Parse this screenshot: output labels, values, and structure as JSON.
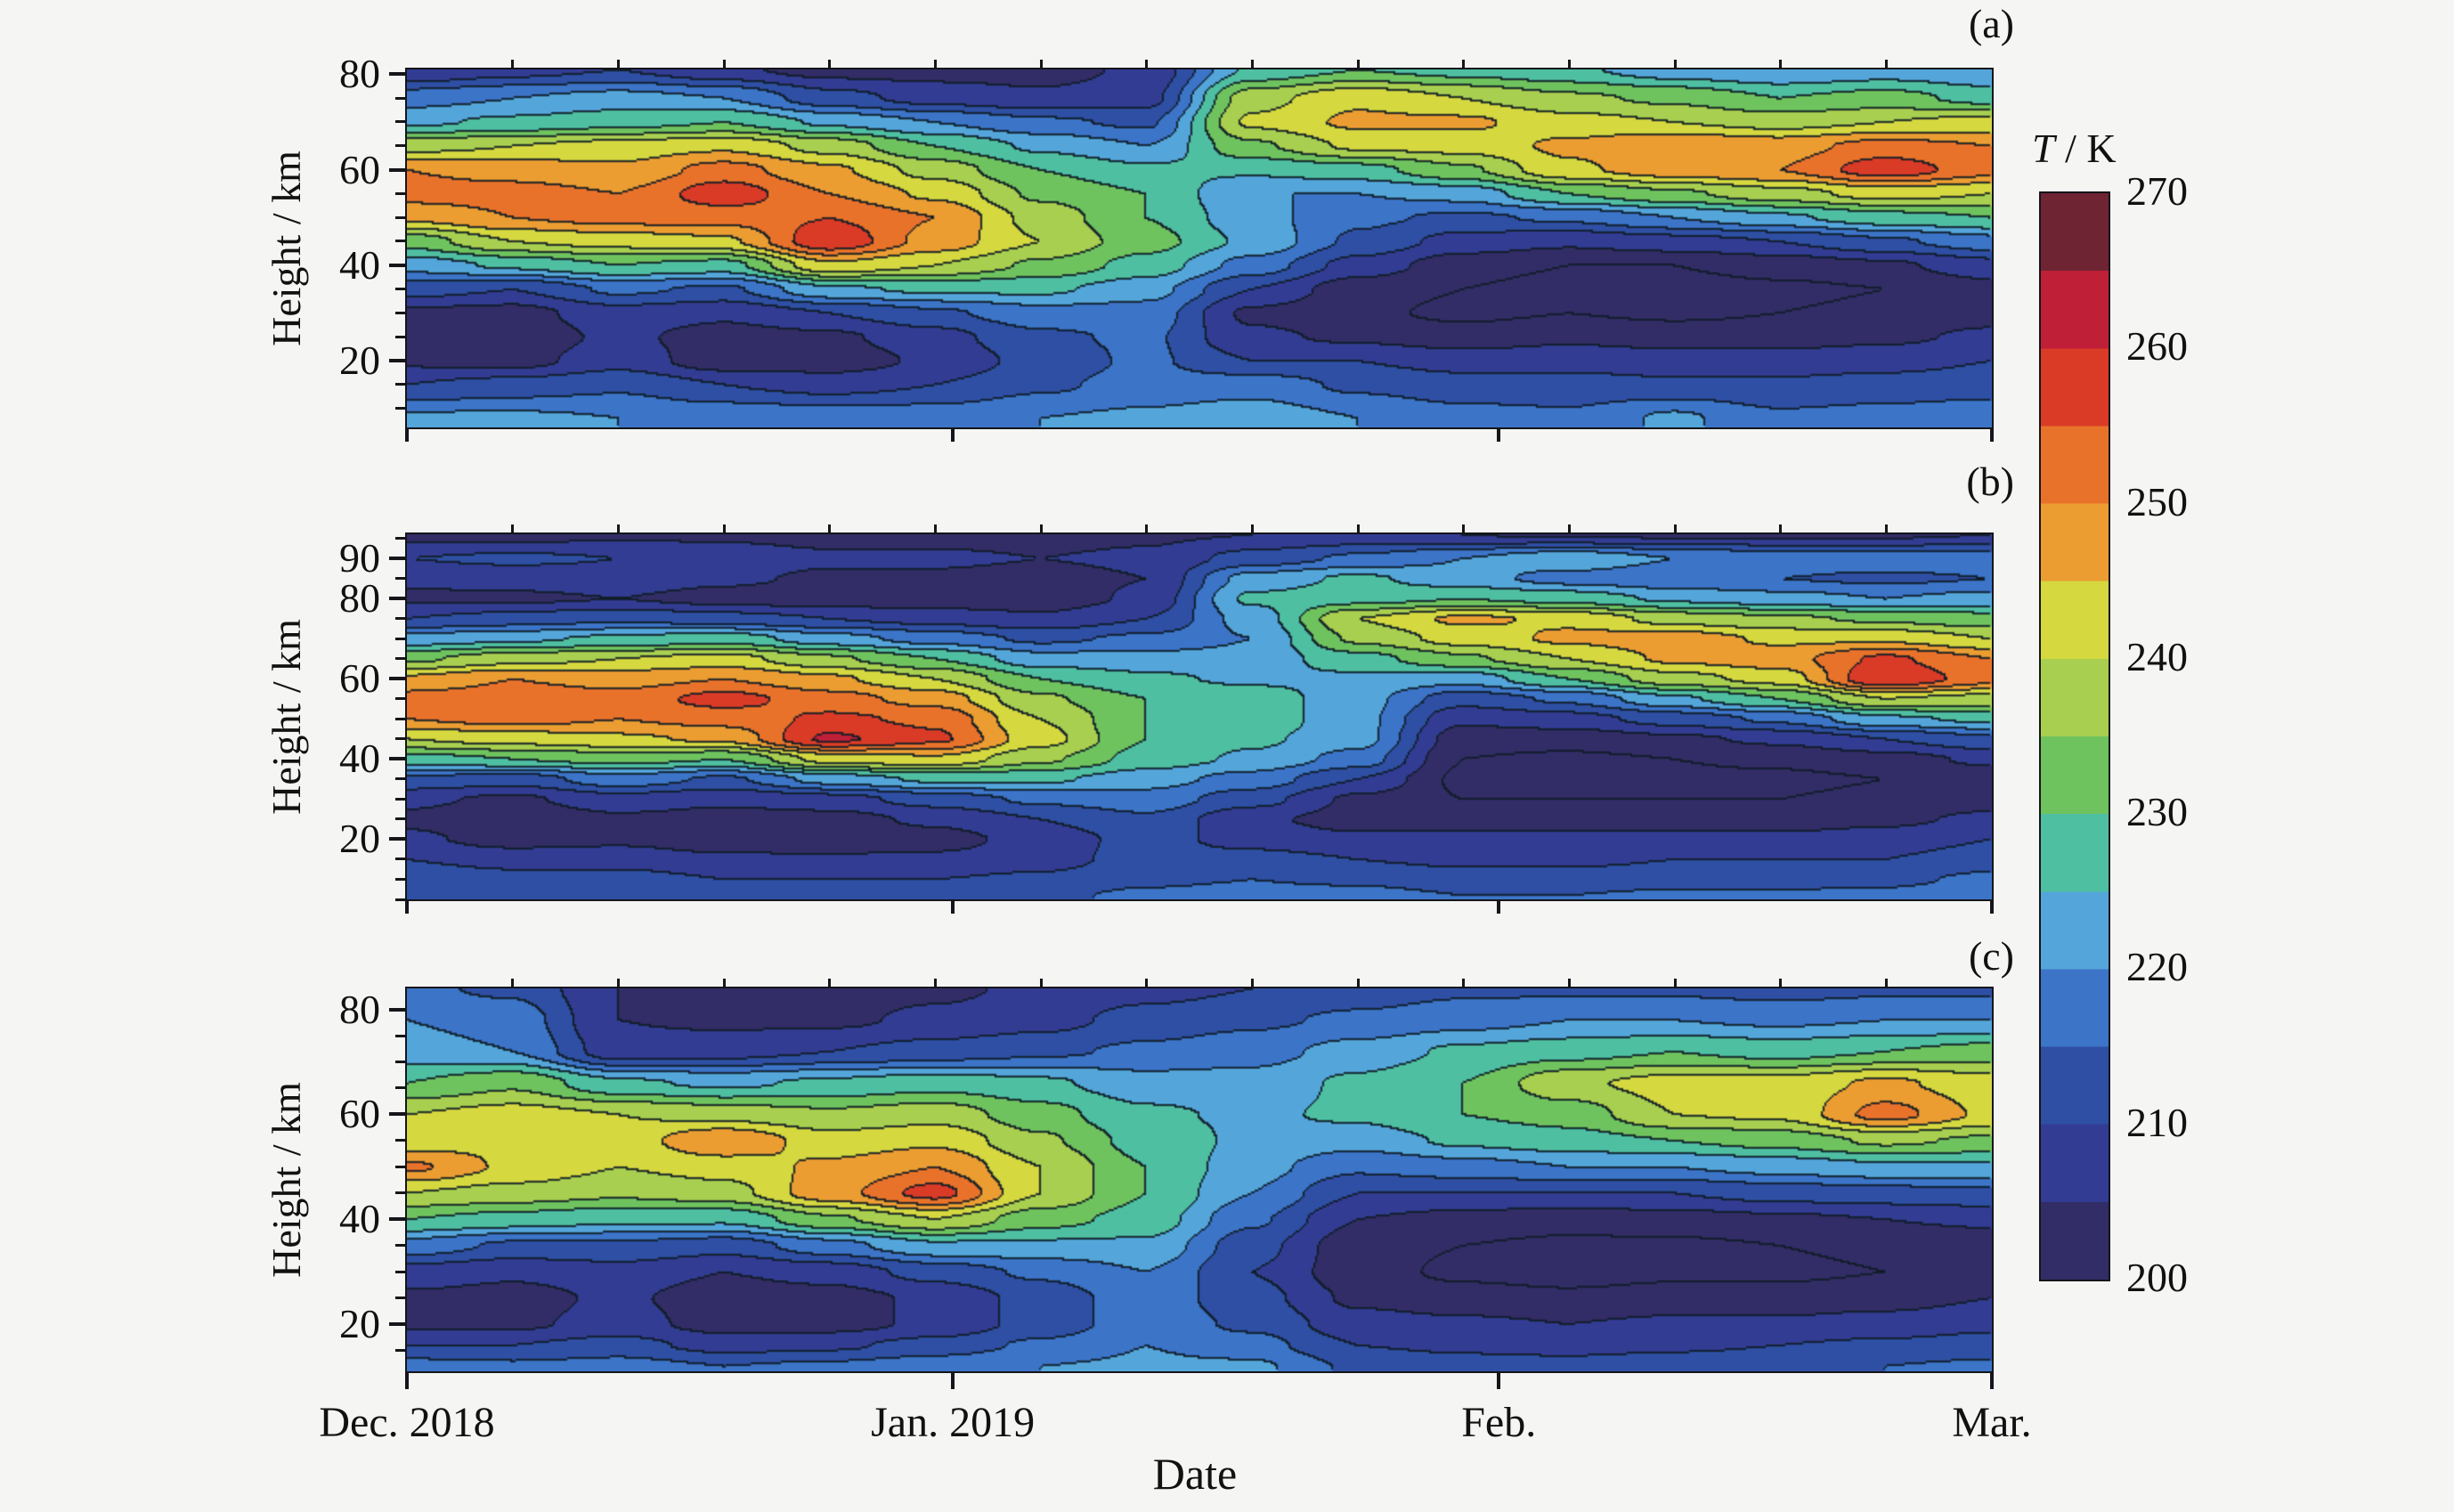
{
  "chart_data": {
    "type": "heatmap",
    "title": "",
    "xlabel": "Date",
    "x_unit_days_range": [
      0,
      90
    ],
    "x_ticks": [
      {
        "label": "Dec. 2018",
        "day": 0
      },
      {
        "label": "Jan. 2019",
        "day": 31
      },
      {
        "label": "Feb.",
        "day": 62
      },
      {
        "label": "Mar.",
        "day": 90
      }
    ],
    "x_minor_tick_step_days": 6,
    "colorbar": {
      "title": "T / K",
      "title_variable": "T",
      "title_suffix": " / K",
      "min": 200,
      "max": 270,
      "step_K": 5,
      "tick_labels": [
        "270",
        "260",
        "250",
        "240",
        "230",
        "220",
        "210",
        "200"
      ],
      "palette_low_to_high": [
        "#322d66",
        "#333c93",
        "#2e4fa3",
        "#3c74c8",
        "#54a6da",
        "#4fbfa2",
        "#6fc35e",
        "#a8cf4f",
        "#d5d83f",
        "#eb9d32",
        "#e9722a",
        "#da3b26",
        "#c01f38",
        "#6f2433"
      ],
      "contour_line_color": "#101c26"
    },
    "panels": [
      {
        "label": "(a)",
        "ylabel": "Height / km",
        "y_ticks_km": [
          20,
          40,
          60,
          80
        ],
        "y_minor_step_km": 5,
        "y_range_km": [
          6,
          81
        ],
        "days": [
          0,
          6,
          12,
          18,
          24,
          30,
          36,
          42,
          48,
          54,
          60,
          66,
          72,
          78,
          84,
          90
        ],
        "heights_km": [
          81,
          75,
          70,
          65,
          60,
          55,
          50,
          45,
          40,
          35,
          30,
          25,
          20,
          15,
          8
        ],
        "temperature_grid_K": [
          [
            205,
            208,
            210,
            206,
            203,
            203,
            203,
            206,
            226,
            230,
            228,
            226,
            222,
            220,
            222,
            220
          ],
          [
            218,
            220,
            222,
            220,
            212,
            208,
            206,
            208,
            238,
            244,
            240,
            236,
            234,
            230,
            232,
            228
          ],
          [
            224,
            226,
            228,
            230,
            224,
            220,
            216,
            214,
            241,
            246,
            246,
            242,
            240,
            238,
            240,
            242
          ],
          [
            238,
            240,
            242,
            244,
            238,
            230,
            224,
            220,
            234,
            241,
            242,
            246,
            250,
            248,
            252,
            250
          ],
          [
            250,
            248,
            246,
            252,
            246,
            238,
            230,
            226,
            226,
            228,
            234,
            244,
            248,
            250,
            258,
            252
          ],
          [
            252,
            252,
            250,
            258,
            250,
            244,
            234,
            230,
            220,
            220,
            222,
            230,
            234,
            238,
            242,
            240
          ],
          [
            246,
            250,
            252,
            252,
            255,
            250,
            238,
            230,
            222,
            216,
            214,
            216,
            220,
            224,
            228,
            230
          ],
          [
            232,
            240,
            242,
            244,
            259,
            248,
            240,
            232,
            224,
            214,
            208,
            206,
            208,
            210,
            214,
            218
          ],
          [
            222,
            226,
            230,
            228,
            244,
            240,
            234,
            228,
            218,
            208,
            202,
            200,
            200,
            202,
            204,
            208
          ],
          [
            212,
            210,
            216,
            214,
            224,
            226,
            226,
            222,
            210,
            202,
            200,
            198,
            198,
            199,
            200,
            203
          ],
          [
            204,
            203,
            208,
            206,
            210,
            214,
            218,
            218,
            204,
            201,
            199,
            200,
            199,
            200,
            201,
            203
          ],
          [
            203,
            202,
            206,
            203,
            204,
            208,
            214,
            216,
            206,
            204,
            202,
            204,
            203,
            203,
            204,
            206
          ],
          [
            204,
            203,
            208,
            202,
            202,
            206,
            212,
            216,
            210,
            210,
            208,
            208,
            207,
            207,
            208,
            210
          ],
          [
            210,
            212,
            214,
            210,
            208,
            210,
            214,
            217,
            218,
            214,
            212,
            212,
            211,
            211,
            212,
            213
          ],
          [
            221,
            221,
            220,
            219,
            218,
            218,
            220,
            221,
            223,
            220,
            217,
            216,
            221,
            216,
            217,
            218
          ]
        ]
      },
      {
        "label": "(b)",
        "ylabel": "Height / km",
        "y_ticks_km": [
          20,
          40,
          60,
          80,
          90
        ],
        "y_minor_step_km": 5,
        "y_range_km": [
          5,
          96
        ],
        "days": [
          0,
          6,
          12,
          18,
          24,
          30,
          36,
          42,
          48,
          54,
          60,
          66,
          72,
          78,
          84,
          90
        ],
        "heights_km": [
          96,
          90,
          85,
          80,
          75,
          70,
          65,
          60,
          55,
          50,
          45,
          40,
          35,
          30,
          25,
          20,
          15,
          10,
          6
        ],
        "temperature_grid_K": [
          [
            203,
            203,
            204,
            204,
            203,
            203,
            203,
            204,
            205,
            206,
            205,
            204,
            204,
            204,
            204,
            205
          ],
          [
            210,
            211,
            210,
            208,
            206,
            206,
            205,
            206,
            212,
            216,
            220,
            224,
            220,
            218,
            218,
            218
          ],
          [
            206,
            207,
            208,
            206,
            204,
            204,
            203,
            205,
            222,
            226,
            222,
            218,
            216,
            215,
            214,
            215
          ],
          [
            204,
            204,
            205,
            203,
            202,
            202,
            202,
            206,
            226,
            228,
            230,
            228,
            224,
            222,
            220,
            222
          ],
          [
            210,
            212,
            214,
            212,
            210,
            208,
            206,
            210,
            222,
            240,
            246,
            244,
            238,
            236,
            234,
            232
          ],
          [
            222,
            224,
            226,
            228,
            222,
            218,
            214,
            216,
            220,
            236,
            242,
            246,
            248,
            244,
            244,
            240
          ],
          [
            234,
            238,
            240,
            242,
            236,
            230,
            222,
            222,
            222,
            228,
            234,
            240,
            246,
            248,
            256,
            250
          ],
          [
            246,
            250,
            248,
            250,
            246,
            240,
            230,
            226,
            224,
            224,
            222,
            230,
            238,
            242,
            260,
            252
          ],
          [
            252,
            253,
            252,
            257,
            252,
            248,
            236,
            230,
            228,
            222,
            212,
            216,
            224,
            230,
            240,
            238
          ],
          [
            250,
            252,
            250,
            252,
            256,
            254,
            240,
            230,
            228,
            222,
            206,
            208,
            212,
            216,
            224,
            226
          ],
          [
            240,
            242,
            244,
            246,
            261,
            256,
            242,
            230,
            226,
            222,
            202,
            202,
            204,
            206,
            210,
            214
          ],
          [
            228,
            230,
            232,
            230,
            242,
            244,
            236,
            228,
            224,
            218,
            200,
            199,
            200,
            201,
            203,
            206
          ],
          [
            214,
            212,
            218,
            214,
            222,
            226,
            226,
            222,
            218,
            210,
            199,
            198,
            199,
            199,
            200,
            202
          ],
          [
            206,
            204,
            208,
            206,
            208,
            212,
            216,
            218,
            212,
            204,
            200,
            200,
            200,
            200,
            201,
            203
          ],
          [
            204,
            201,
            204,
            203,
            203,
            206,
            210,
            214,
            206,
            203,
            203,
            203,
            203,
            203,
            204,
            206
          ],
          [
            206,
            203,
            204,
            202,
            201,
            203,
            207,
            212,
            208,
            206,
            206,
            206,
            206,
            206,
            207,
            210
          ],
          [
            210,
            208,
            208,
            206,
            206,
            206,
            208,
            212,
            212,
            210,
            209,
            209,
            210,
            210,
            210,
            213
          ],
          [
            214,
            212,
            212,
            210,
            210,
            210,
            211,
            214,
            215,
            214,
            212,
            212,
            213,
            213,
            214,
            216
          ],
          [
            212,
            214,
            214,
            212,
            212,
            213,
            214,
            216,
            217,
            217,
            215,
            215,
            216,
            216,
            216,
            218
          ]
        ]
      },
      {
        "label": "(c)",
        "ylabel": "Height / km",
        "y_ticks_km": [
          20,
          40,
          60,
          80
        ],
        "y_minor_step_km": 5,
        "y_range_km": [
          11,
          84
        ],
        "days": [
          0,
          6,
          12,
          18,
          24,
          30,
          36,
          42,
          48,
          54,
          60,
          66,
          72,
          78,
          84,
          90
        ],
        "heights_km": [
          84,
          78,
          72,
          66,
          60,
          55,
          50,
          45,
          40,
          35,
          30,
          25,
          20,
          16,
          12
        ],
        "temperature_grid_K": [
          [
            216,
            214,
            205,
            203,
            203,
            204,
            206,
            208,
            210,
            212,
            214,
            214,
            214,
            213,
            214,
            214
          ],
          [
            220,
            218,
            205,
            204,
            204,
            206,
            208,
            212,
            214,
            216,
            218,
            220,
            220,
            219,
            220,
            220
          ],
          [
            222,
            220,
            207,
            208,
            210,
            212,
            214,
            216,
            218,
            222,
            226,
            228,
            230,
            228,
            230,
            232
          ],
          [
            230,
            234,
            226,
            224,
            226,
            228,
            226,
            222,
            222,
            226,
            230,
            239,
            242,
            242,
            246,
            242
          ],
          [
            240,
            242,
            240,
            238,
            236,
            238,
            232,
            226,
            224,
            226,
            230,
            232,
            240,
            241,
            252,
            244
          ],
          [
            242,
            244,
            242,
            250,
            242,
            244,
            236,
            228,
            224,
            222,
            226,
            228,
            230,
            232,
            236,
            234
          ],
          [
            251,
            244,
            240,
            242,
            246,
            250,
            240,
            230,
            222,
            216,
            218,
            220,
            220,
            222,
            224,
            224
          ],
          [
            240,
            238,
            236,
            238,
            248,
            257,
            240,
            230,
            220,
            210,
            210,
            210,
            210,
            212,
            213,
            214
          ],
          [
            230,
            228,
            226,
            226,
            234,
            240,
            232,
            228,
            216,
            205,
            203,
            202,
            203,
            204,
            205,
            206
          ],
          [
            218,
            214,
            214,
            212,
            218,
            224,
            224,
            224,
            212,
            202,
            200,
            199,
            199,
            200,
            201,
            202
          ],
          [
            208,
            206,
            208,
            205,
            207,
            212,
            216,
            220,
            210,
            202,
            199,
            198,
            199,
            199,
            200,
            202
          ],
          [
            204,
            203,
            206,
            202,
            203,
            206,
            212,
            218,
            212,
            204,
            202,
            201,
            202,
            202,
            203,
            205
          ],
          [
            204,
            204,
            207,
            203,
            203,
            206,
            212,
            218,
            214,
            207,
            206,
            205,
            206,
            206,
            207,
            209
          ],
          [
            210,
            210,
            212,
            208,
            209,
            212,
            216,
            220,
            217,
            210,
            209,
            208,
            209,
            210,
            211,
            212
          ],
          [
            217,
            216,
            217,
            215,
            216,
            218,
            220,
            221,
            221,
            214,
            212,
            212,
            213,
            214,
            215,
            216
          ]
        ]
      }
    ]
  }
}
